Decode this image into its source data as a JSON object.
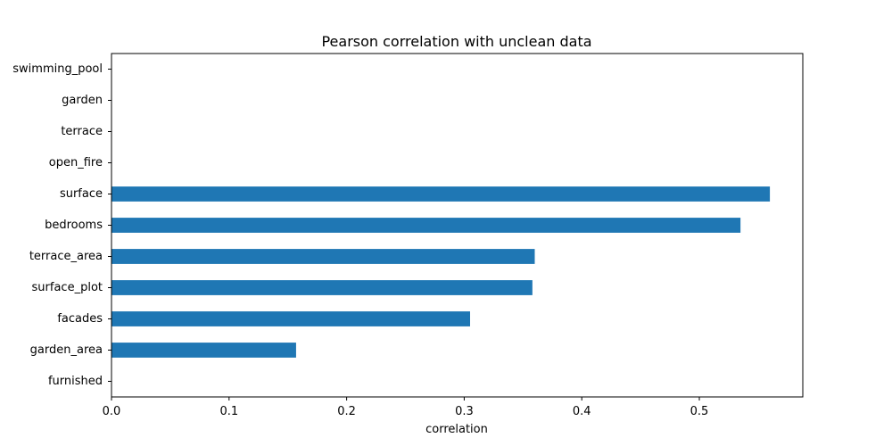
{
  "chart_data": {
    "type": "bar",
    "orientation": "horizontal",
    "title": "Pearson correlation with unclean data",
    "xlabel": "correlation",
    "ylabel": "",
    "xlim": [
      0,
      0.588
    ],
    "xticks": [
      "0.0",
      "0.1",
      "0.2",
      "0.3",
      "0.4",
      "0.5"
    ],
    "xtick_values": [
      0,
      0.1,
      0.2,
      0.3,
      0.4,
      0.5
    ],
    "categories": [
      "swimming_pool",
      "garden",
      "terrace",
      "open_fire",
      "surface",
      "bedrooms",
      "terrace_area",
      "surface_plot",
      "facades",
      "garden_area",
      "furnished"
    ],
    "values": [
      0,
      0,
      0,
      0,
      0.56,
      0.535,
      0.36,
      0.358,
      0.305,
      0.157,
      0
    ],
    "bar_color": "#1f77b4",
    "grid": false,
    "legend": "none"
  }
}
